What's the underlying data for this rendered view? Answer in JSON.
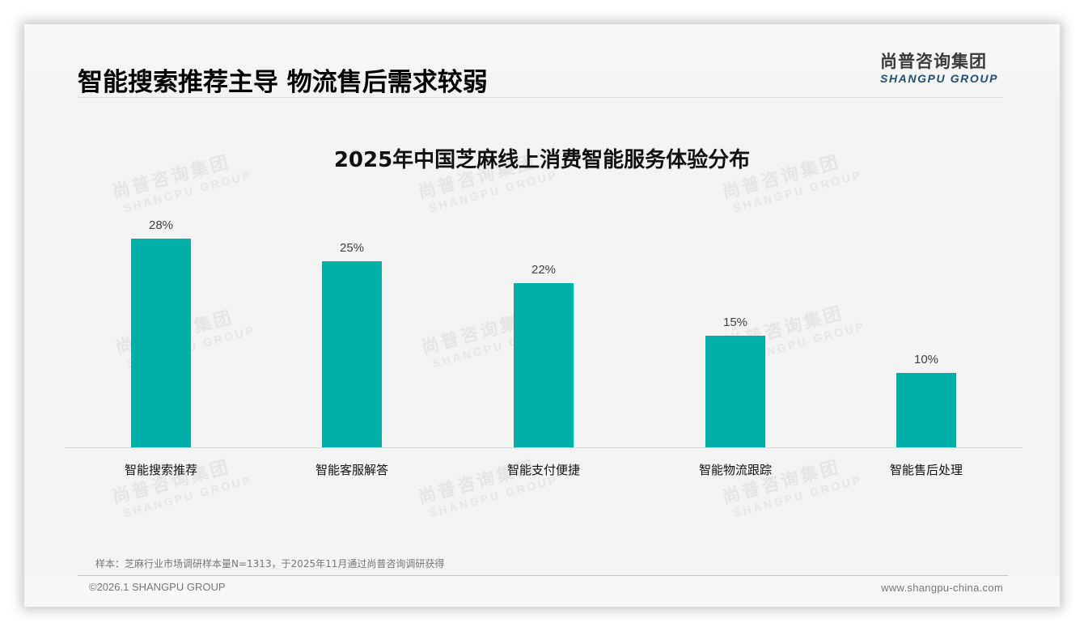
{
  "header": {
    "title": "智能搜索推荐主导 物流售后需求较弱",
    "logo_cn": "尚普咨询集团",
    "logo_en": "SHANGPU GROUP"
  },
  "watermark": {
    "cn": "尚普咨询集团",
    "en": "SHANGPU GROUP"
  },
  "chart_data": {
    "type": "bar",
    "title": "2025年中国芝麻线上消费智能服务体验分布",
    "categories": [
      "智能搜索推荐",
      "智能客服解答",
      "智能支付便捷",
      "智能物流跟踪",
      "智能售后处理"
    ],
    "values": [
      28,
      25,
      22,
      15,
      10
    ],
    "value_labels": [
      "28%",
      "25%",
      "22%",
      "15%",
      "10%"
    ],
    "unit": "%",
    "xlabel": "",
    "ylabel": "",
    "ylim": [
      0,
      30
    ],
    "grid": false,
    "legend": null,
    "bar_color": "#00b0a8"
  },
  "footer": {
    "note": "样本：芝麻行业市场调研样本量N=1313，于2025年11月通过尚普咨询调研获得",
    "copyright": "©2026.1 SHANGPU GROUP",
    "website": "www.shangpu-china.com"
  },
  "colors": {
    "accent": "#00b0a8",
    "logo_blue": "#1f4e79",
    "background": "#f3f3f3"
  }
}
